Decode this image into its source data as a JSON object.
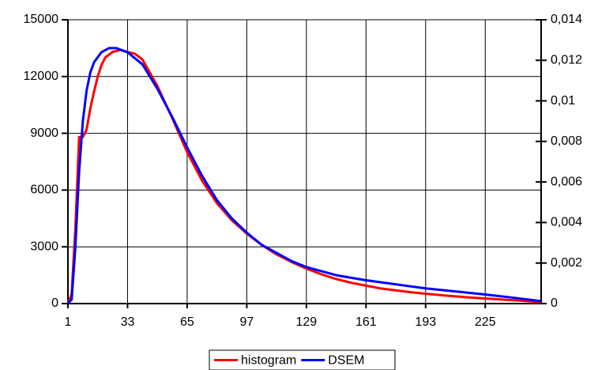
{
  "chart_data": {
    "type": "line",
    "xlim": [
      1,
      255
    ],
    "xticks": [
      1,
      33,
      65,
      97,
      129,
      161,
      193,
      225
    ],
    "ylim": [
      0,
      15000
    ],
    "yticks": [
      0,
      3000,
      6000,
      9000,
      12000,
      15000
    ],
    "y2lim": [
      0,
      0.014
    ],
    "y2ticks": [
      0,
      {
        "value": 0.002,
        "label": "0,002"
      },
      {
        "value": 0.004,
        "label": "0,004"
      },
      {
        "value": 0.006,
        "label": "0,006"
      },
      {
        "value": 0.008,
        "label": "0,008"
      },
      {
        "value": 0.01,
        "label": "0,01"
      },
      {
        "value": 0.012,
        "label": "0,012"
      },
      {
        "value": 0.014,
        "label": "0,014"
      }
    ],
    "grid": true,
    "legend": "bottom",
    "series": [
      {
        "name": "histogram",
        "color": "#ff0000",
        "x": [
          1,
          3,
          5,
          7,
          9,
          11,
          13,
          15,
          17,
          19,
          21,
          25,
          29,
          33,
          37,
          41,
          49,
          57,
          65,
          73,
          81,
          89,
          97,
          105,
          113,
          121,
          129,
          137,
          145,
          153,
          161,
          169,
          177,
          185,
          193,
          201,
          209,
          217,
          225,
          233,
          241,
          249,
          255
        ],
        "values": [
          0,
          500,
          4000,
          8800,
          8800,
          9200,
          10300,
          11200,
          12000,
          12600,
          13000,
          13300,
          13400,
          13300,
          13200,
          12900,
          11500,
          9800,
          8000,
          6500,
          5300,
          4400,
          3700,
          3100,
          2600,
          2200,
          1850,
          1550,
          1300,
          1100,
          950,
          800,
          700,
          600,
          520,
          450,
          380,
          320,
          270,
          220,
          170,
          120,
          80
        ]
      },
      {
        "name": "DSEM",
        "color": "#0000ff",
        "axis": "y2",
        "x": [
          1,
          3,
          5,
          7,
          9,
          11,
          13,
          15,
          19,
          23,
          27,
          33,
          41,
          49,
          57,
          65,
          73,
          81,
          89,
          97,
          105,
          113,
          121,
          129,
          145,
          161,
          177,
          193,
          209,
          225,
          241,
          255
        ],
        "values": [
          0,
          0.0002,
          0.0028,
          0.0065,
          0.009,
          0.0105,
          0.0114,
          0.0119,
          0.0124,
          0.0126,
          0.0126,
          0.0124,
          0.0118,
          0.0106,
          0.0092,
          0.0077,
          0.0063,
          0.0051,
          0.0042,
          0.0035,
          0.0029,
          0.0025,
          0.0021,
          0.0018,
          0.0014,
          0.00115,
          0.00095,
          0.00075,
          0.0006,
          0.00045,
          0.00028,
          0.00012
        ]
      }
    ]
  }
}
